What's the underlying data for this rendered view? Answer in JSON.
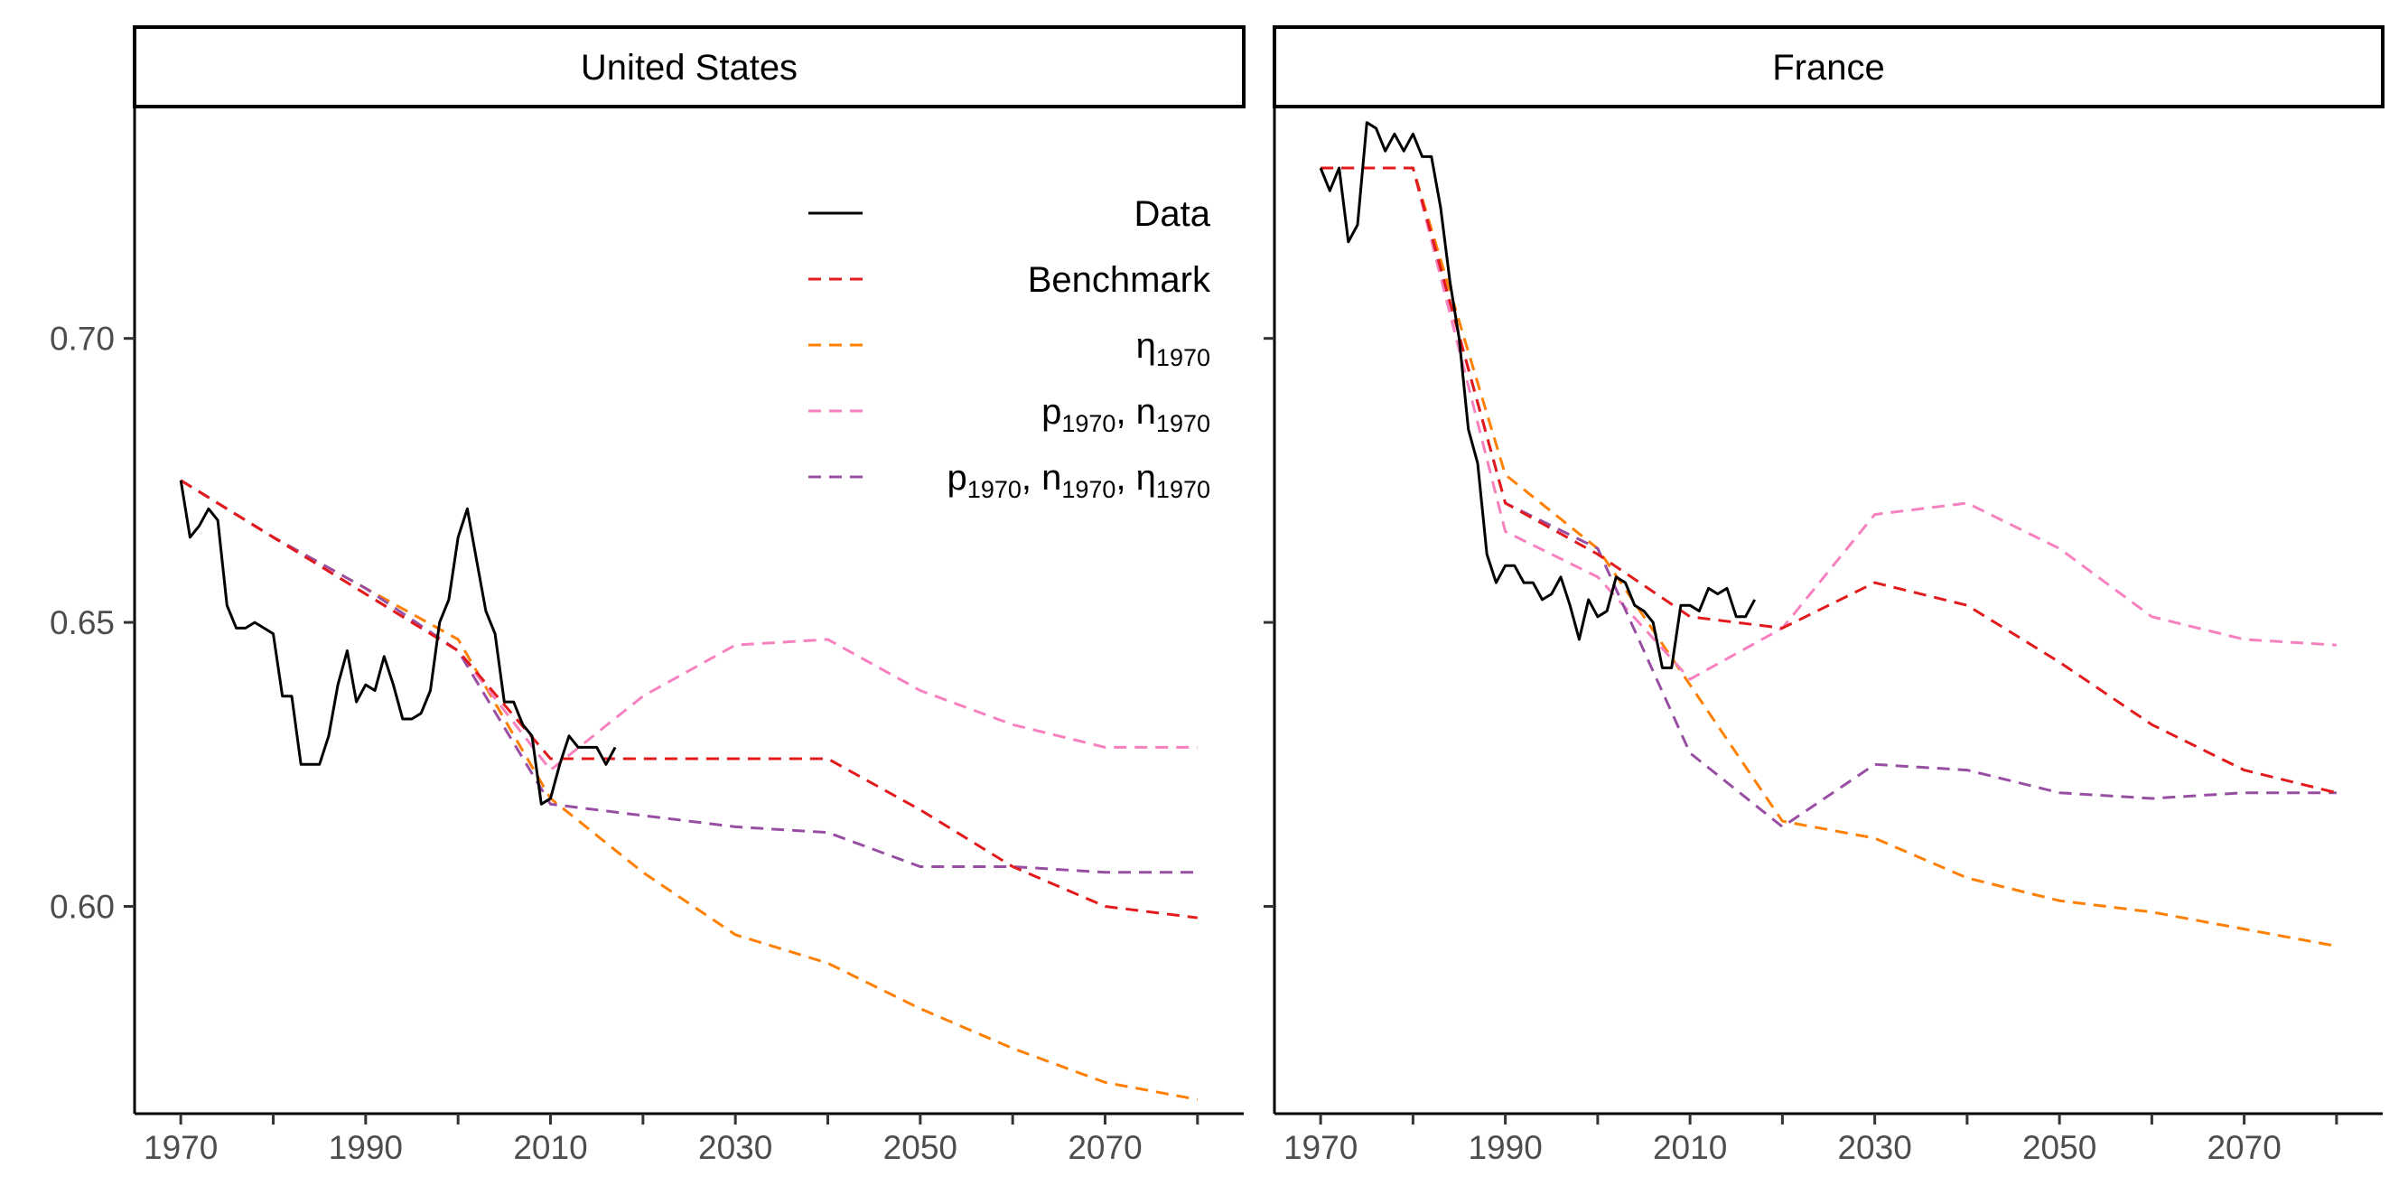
{
  "chart_data": {
    "type": "line",
    "x_ticks": [
      1970,
      1990,
      2010,
      2030,
      2050,
      2070
    ],
    "xlim": [
      1965,
      2085
    ],
    "y_ticks": [
      0.6,
      0.65,
      0.7
    ],
    "y_tick_labels": [
      "0.60",
      "0.65",
      "0.70"
    ],
    "ylim": [
      0.5635,
      0.7405
    ],
    "grid": false,
    "legend": {
      "placement": "top-right of first panel",
      "entries": [
        {
          "key": "data",
          "parts": [
            {
              "t": "Data"
            }
          ]
        },
        {
          "key": "benchmark",
          "parts": [
            {
              "t": "Benchmark"
            }
          ]
        },
        {
          "key": "eta1970",
          "parts": [
            {
              "t": "η"
            },
            {
              "t": "1970",
              "sub": true
            }
          ]
        },
        {
          "key": "p1970_n1970",
          "parts": [
            {
              "t": "p"
            },
            {
              "t": "1970",
              "sub": true
            },
            {
              "t": ", n"
            },
            {
              "t": "1970",
              "sub": true
            }
          ]
        },
        {
          "key": "p1970_n1970_eta1970",
          "parts": [
            {
              "t": "p"
            },
            {
              "t": "1970",
              "sub": true
            },
            {
              "t": ", n"
            },
            {
              "t": "1970",
              "sub": true
            },
            {
              "t": ", η"
            },
            {
              "t": "1970",
              "sub": true
            }
          ]
        }
      ]
    },
    "styles": {
      "data": {
        "color": "#000000",
        "dash": "solid"
      },
      "benchmark": {
        "color": "#e31a1c",
        "dash": "dashed"
      },
      "eta1970": {
        "color": "#ff7f00",
        "dash": "dashed"
      },
      "p1970_n1970": {
        "color": "#f781bf",
        "dash": "dashed"
      },
      "p1970_n1970_eta1970": {
        "color": "#984ea3",
        "dash": "dashed"
      }
    },
    "panels": [
      {
        "title": "United States",
        "series": [
          {
            "key": "data",
            "x": [
              1970,
              1971,
              1972,
              1973,
              1974,
              1975,
              1976,
              1977,
              1978,
              1979,
              1980,
              1981,
              1982,
              1983,
              1984,
              1985,
              1986,
              1987,
              1988,
              1989,
              1990,
              1991,
              1992,
              1993,
              1994,
              1995,
              1996,
              1997,
              1998,
              1999,
              2000,
              2001,
              2002,
              2003,
              2004,
              2005,
              2006,
              2007,
              2008,
              2009,
              2010,
              2011,
              2012,
              2013,
              2014,
              2015,
              2016,
              2017
            ],
            "y": [
              0.675,
              0.665,
              0.667,
              0.67,
              0.668,
              0.653,
              0.649,
              0.649,
              0.65,
              0.649,
              0.648,
              0.637,
              0.637,
              0.625,
              0.625,
              0.625,
              0.63,
              0.639,
              0.645,
              0.636,
              0.639,
              0.638,
              0.644,
              0.639,
              0.633,
              0.633,
              0.634,
              0.638,
              0.65,
              0.654,
              0.665,
              0.67,
              0.661,
              0.652,
              0.648,
              0.636,
              0.636,
              0.632,
              0.63,
              0.618,
              0.619,
              0.625,
              0.63,
              0.628,
              0.628,
              0.628,
              0.625,
              0.628
            ]
          },
          {
            "key": "benchmark",
            "x": [
              1970,
              1980,
              1990,
              2000,
              2010,
              2020,
              2030,
              2040,
              2050,
              2060,
              2070,
              2080
            ],
            "y": [
              0.675,
              0.665,
              0.655,
              0.645,
              0.626,
              0.626,
              0.626,
              0.626,
              0.617,
              0.607,
              0.6,
              0.598
            ]
          },
          {
            "key": "eta1970",
            "x": [
              1970,
              1980,
              1990,
              2000,
              2010,
              2020,
              2030,
              2040,
              2050,
              2060,
              2070,
              2080
            ],
            "y": [
              0.675,
              0.665,
              0.656,
              0.647,
              0.619,
              0.606,
              0.595,
              0.59,
              0.582,
              0.575,
              0.569,
              0.566
            ]
          },
          {
            "key": "p1970_n1970",
            "x": [
              1970,
              1980,
              1990,
              2000,
              2010,
              2020,
              2030,
              2040,
              2050,
              2060,
              2070,
              2080
            ],
            "y": [
              0.675,
              0.665,
              0.655,
              0.645,
              0.624,
              0.637,
              0.646,
              0.647,
              0.638,
              0.632,
              0.628,
              0.628
            ]
          },
          {
            "key": "p1970_n1970_eta1970",
            "x": [
              1970,
              1980,
              1990,
              2000,
              2010,
              2020,
              2030,
              2040,
              2050,
              2060,
              2070,
              2080
            ],
            "y": [
              0.675,
              0.665,
              0.656,
              0.645,
              0.618,
              0.616,
              0.614,
              0.613,
              0.607,
              0.607,
              0.606,
              0.606
            ]
          }
        ]
      },
      {
        "title": "France",
        "series": [
          {
            "key": "data",
            "x": [
              1970,
              1971,
              1972,
              1973,
              1974,
              1975,
              1976,
              1977,
              1978,
              1979,
              1980,
              1981,
              1982,
              1983,
              1984,
              1985,
              1986,
              1987,
              1988,
              1989,
              1990,
              1991,
              1992,
              1993,
              1994,
              1995,
              1996,
              1997,
              1998,
              1999,
              2000,
              2001,
              2002,
              2003,
              2004,
              2005,
              2006,
              2007,
              2008,
              2009,
              2010,
              2011,
              2012,
              2013,
              2014,
              2015,
              2016,
              2017
            ],
            "y": [
              0.73,
              0.726,
              0.73,
              0.717,
              0.72,
              0.738,
              0.737,
              0.733,
              0.736,
              0.733,
              0.736,
              0.732,
              0.732,
              0.723,
              0.71,
              0.7,
              0.684,
              0.678,
              0.662,
              0.657,
              0.66,
              0.66,
              0.657,
              0.657,
              0.654,
              0.655,
              0.658,
              0.653,
              0.647,
              0.654,
              0.651,
              0.652,
              0.658,
              0.657,
              0.653,
              0.652,
              0.65,
              0.642,
              0.642,
              0.653,
              0.653,
              0.652,
              0.656,
              0.655,
              0.656,
              0.651,
              0.651,
              0.654
            ]
          },
          {
            "key": "benchmark",
            "x": [
              1970,
              1975,
              1980,
              1990,
              2000,
              2010,
              2020,
              2030,
              2040,
              2050,
              2060,
              2070,
              2080
            ],
            "y": [
              0.73,
              0.73,
              0.73,
              0.671,
              0.662,
              0.651,
              0.649,
              0.657,
              0.653,
              0.643,
              0.632,
              0.624,
              0.62
            ]
          },
          {
            "key": "eta1970",
            "x": [
              1970,
              1975,
              1980,
              1990,
              2000,
              2010,
              2020,
              2030,
              2040,
              2050,
              2060,
              2070,
              2080
            ],
            "y": [
              0.73,
              0.73,
              0.73,
              0.676,
              0.663,
              0.639,
              0.615,
              0.612,
              0.605,
              0.601,
              0.599,
              0.596,
              0.593
            ]
          },
          {
            "key": "p1970_n1970",
            "x": [
              1970,
              1975,
              1980,
              1990,
              2000,
              2010,
              2020,
              2030,
              2040,
              2050,
              2060,
              2070,
              2080
            ],
            "y": [
              0.73,
              0.73,
              0.73,
              0.666,
              0.658,
              0.64,
              0.649,
              0.669,
              0.671,
              0.663,
              0.651,
              0.647,
              0.646
            ]
          },
          {
            "key": "p1970_n1970_eta1970",
            "x": [
              1970,
              1975,
              1980,
              1990,
              2000,
              2010,
              2020,
              2030,
              2040,
              2050,
              2060,
              2070,
              2080
            ],
            "y": [
              0.73,
              0.73,
              0.73,
              0.671,
              0.663,
              0.627,
              0.614,
              0.625,
              0.624,
              0.62,
              0.619,
              0.62,
              0.62
            ]
          }
        ]
      }
    ]
  }
}
